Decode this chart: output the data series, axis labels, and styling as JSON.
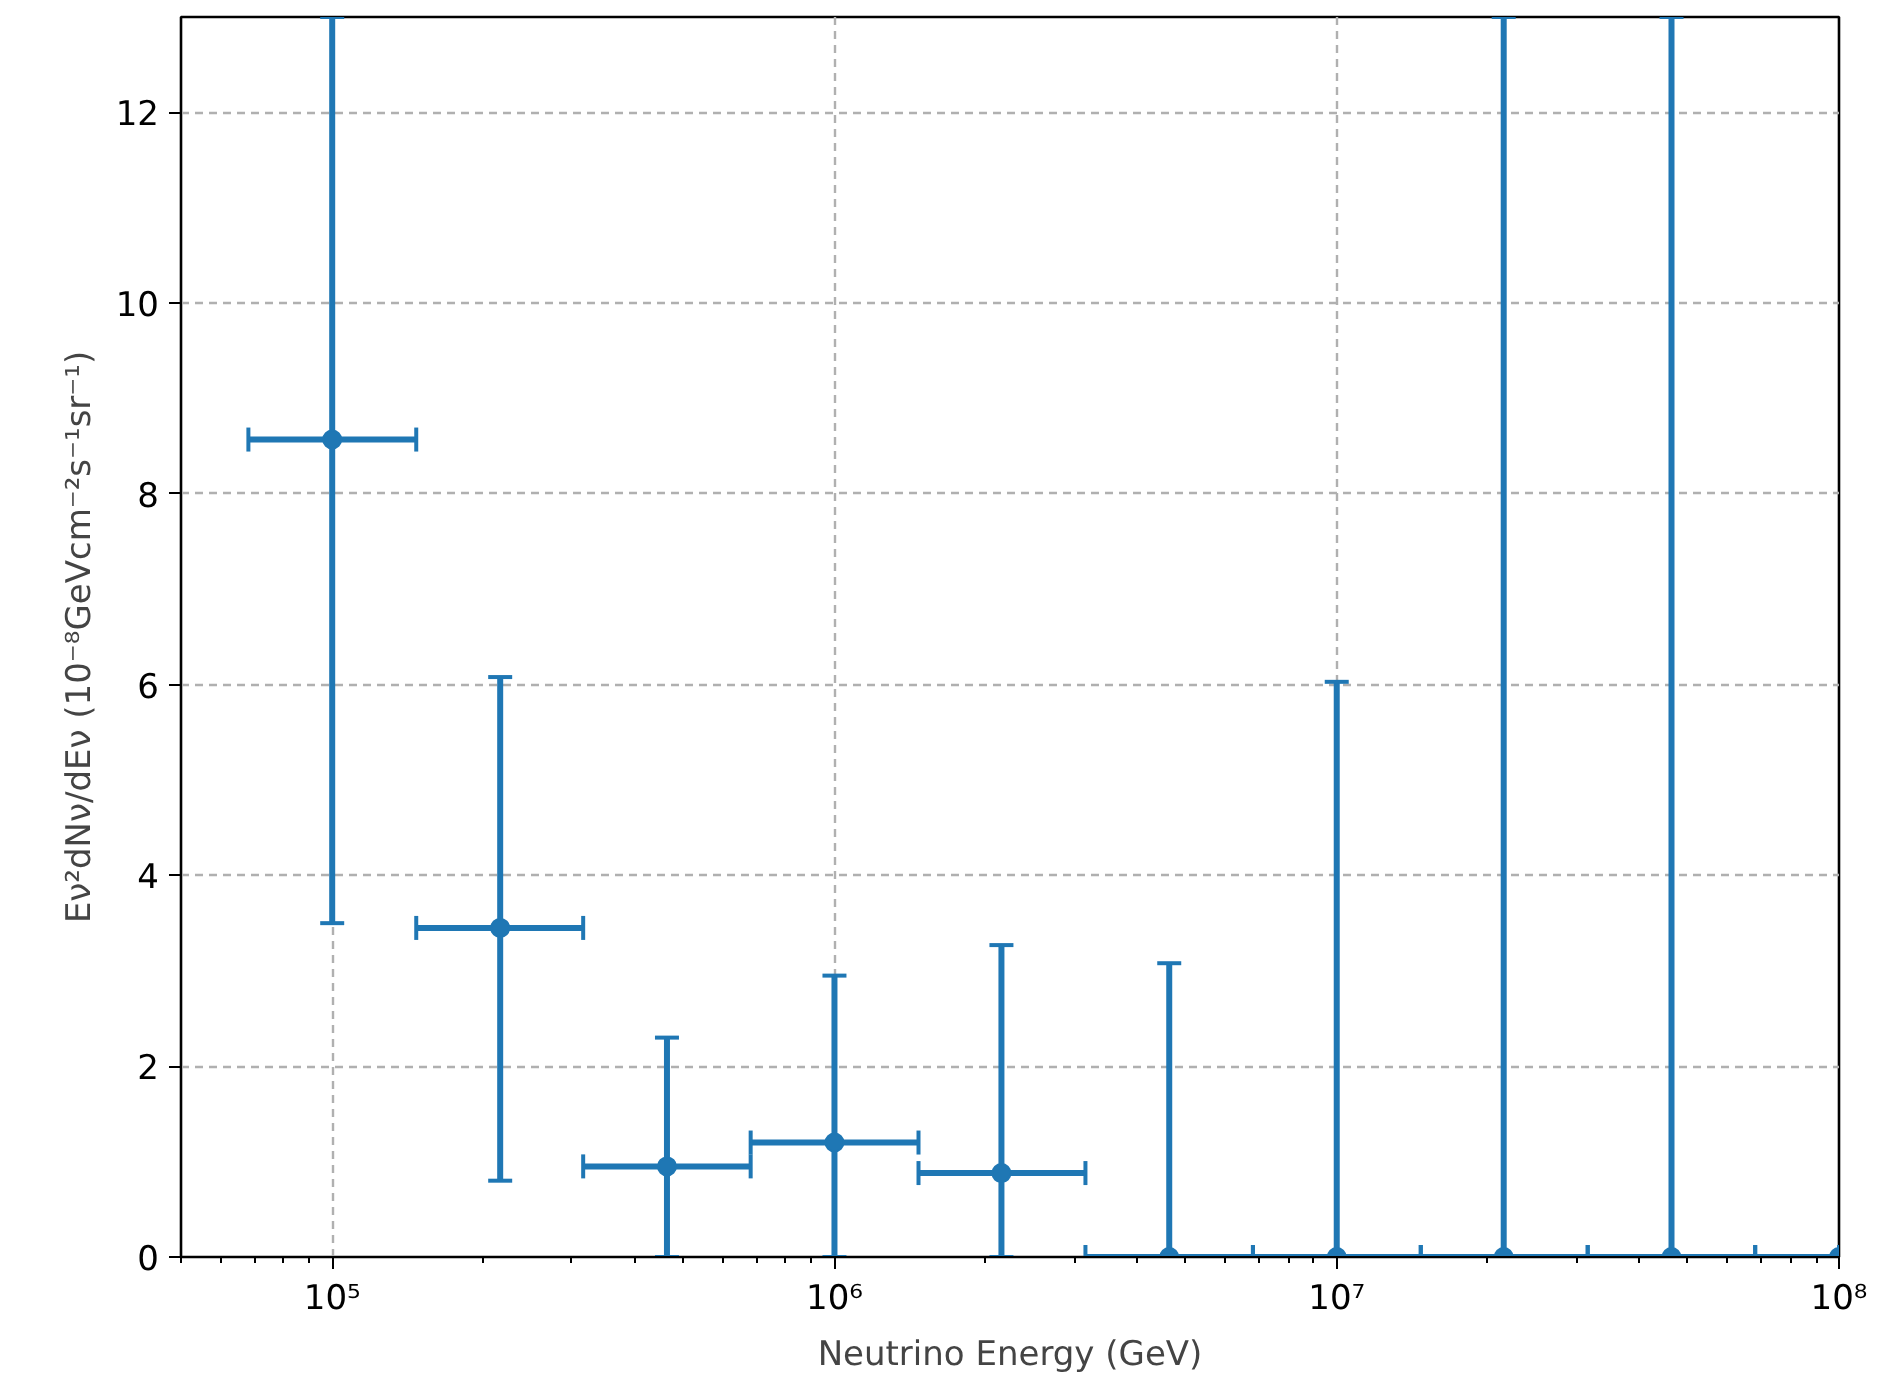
{
  "chart_data": {
    "type": "scatter",
    "xlabel": "Neutrino Energy (GeV)",
    "ylabel": "Eν²dNν/dEν (10⁻⁸GeVcm⁻²s⁻¹sr⁻¹)",
    "log": "x",
    "x": [
      100000,
      216000,
      464000,
      1000000,
      2150000,
      4640000,
      10000000,
      21500000,
      46400000,
      100000000
    ],
    "series": [
      {
        "color": "#1f77b4",
        "values": [
          8.57,
          3.45,
          0.95,
          1.2,
          0.88,
          0,
          0,
          0,
          0,
          0
        ],
        "errors": [
          [
            3.5,
            13
          ],
          [
            0.8,
            6.08
          ],
          [
            0,
            2.3
          ],
          [
            0,
            2.95
          ],
          [
            0,
            3.27
          ],
          [
            0,
            3.08
          ],
          [
            0,
            6.03
          ],
          [
            0,
            13
          ],
          [
            0,
            13
          ],
          null
        ],
        "xerrors": [
          [
            68100,
            147000
          ],
          [
            147000,
            316000
          ],
          [
            316000,
            681000
          ],
          [
            681000,
            1470000
          ],
          [
            1470000,
            3160000
          ],
          [
            3160000,
            6810000
          ],
          [
            6810000,
            14700000
          ],
          [
            14700000,
            31600000
          ],
          [
            31600000,
            68100000
          ],
          [
            68100000,
            100000000
          ]
        ]
      }
    ],
    "marker": "circle",
    "xlim": [
      50000,
      100000000
    ],
    "ylim": [
      0,
      13
    ],
    "xticks": [
      {
        "value": 100000,
        "label": "10⁵"
      },
      {
        "value": 1000000,
        "label": "10⁶"
      },
      {
        "value": 10000000,
        "label": "10⁷"
      },
      {
        "value": 100000000,
        "label": "10⁸"
      }
    ],
    "yticks": [
      0,
      2,
      4,
      6,
      8,
      10,
      12
    ],
    "grid": true
  }
}
